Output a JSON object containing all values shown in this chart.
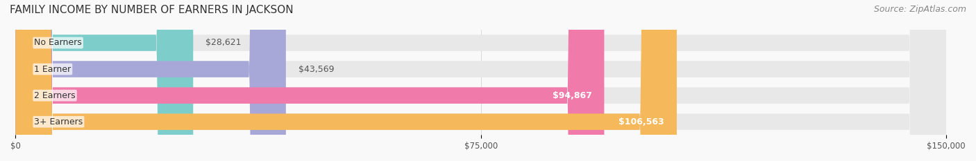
{
  "title": "FAMILY INCOME BY NUMBER OF EARNERS IN JACKSON",
  "source": "Source: ZipAtlas.com",
  "categories": [
    "No Earners",
    "1 Earner",
    "2 Earners",
    "3+ Earners"
  ],
  "values": [
    28621,
    43569,
    94867,
    106563
  ],
  "labels": [
    "$28,621",
    "$43,569",
    "$94,867",
    "$106,563"
  ],
  "bar_colors": [
    "#7dceca",
    "#a8a8d8",
    "#f07aaa",
    "#f5b85a"
  ],
  "bar_bg_color": "#eeeeee",
  "xlim": [
    0,
    150000
  ],
  "xticks": [
    0,
    75000,
    150000
  ],
  "xticklabels": [
    "$0",
    "$75,000",
    "$150,000"
  ],
  "title_fontsize": 11,
  "source_fontsize": 9,
  "label_fontsize": 9,
  "category_fontsize": 9,
  "background_color": "#f9f9f9",
  "bar_bg_alpha": 0.5
}
